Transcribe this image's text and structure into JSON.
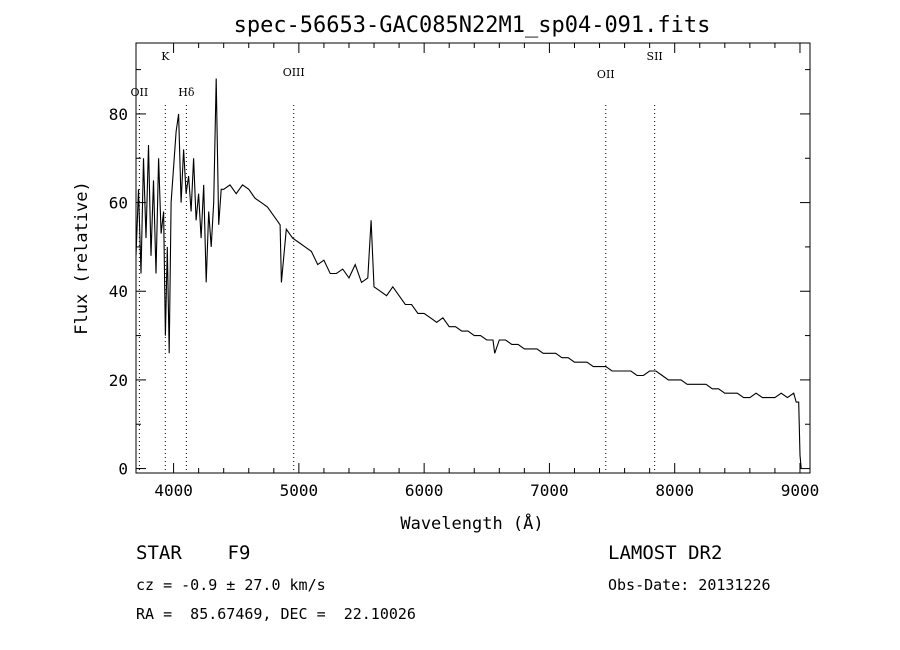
{
  "chart_data": {
    "type": "line",
    "title": "spec-56653-GAC085N22M1_sp04-091.fits",
    "xlabel": "Wavelength (Å)",
    "ylabel": "Flux (relative)",
    "xlim": [
      3700,
      9080
    ],
    "ylim": [
      -1,
      96
    ],
    "xticks": [
      4000,
      5000,
      6000,
      7000,
      8000,
      9000
    ],
    "yticks": [
      0,
      20,
      40,
      60,
      80
    ],
    "grid": false,
    "series": [
      {
        "values_x": [
          3700,
          3720,
          3740,
          3760,
          3780,
          3800,
          3820,
          3840,
          3860,
          3880,
          3900,
          3920,
          3935,
          3950,
          3965,
          3980,
          4000,
          4020,
          4040,
          4060,
          4080,
          4100,
          4120,
          4140,
          4160,
          4180,
          4200,
          4220,
          4240,
          4260,
          4280,
          4300,
          4320,
          4340,
          4360,
          4380,
          4400,
          4450,
          4500,
          4550,
          4600,
          4650,
          4700,
          4750,
          4800,
          4850,
          4861,
          4900,
          4950,
          5000,
          5050,
          5100,
          5150,
          5200,
          5250,
          5300,
          5350,
          5400,
          5450,
          5500,
          5550,
          5577,
          5600,
          5650,
          5700,
          5750,
          5800,
          5850,
          5900,
          5950,
          6000,
          6050,
          6100,
          6150,
          6200,
          6250,
          6300,
          6350,
          6400,
          6450,
          6500,
          6550,
          6563,
          6600,
          6650,
          6700,
          6750,
          6800,
          6850,
          6900,
          6950,
          7000,
          7050,
          7100,
          7150,
          7200,
          7250,
          7300,
          7350,
          7400,
          7450,
          7500,
          7550,
          7600,
          7650,
          7700,
          7750,
          7800,
          7850,
          7900,
          7950,
          8000,
          8050,
          8100,
          8150,
          8200,
          8250,
          8300,
          8350,
          8400,
          8450,
          8500,
          8550,
          8600,
          8650,
          8700,
          8750,
          8800,
          8850,
          8900,
          8950,
          8970,
          8990,
          9000,
          9010
        ],
        "values_y": [
          48,
          63,
          44,
          70,
          52,
          73,
          48,
          65,
          44,
          70,
          53,
          58,
          30,
          50,
          26,
          60,
          68,
          76,
          80,
          60,
          72,
          62,
          66,
          58,
          70,
          56,
          62,
          52,
          64,
          42,
          58,
          50,
          60,
          88,
          55,
          63,
          63,
          64,
          62,
          64,
          63,
          61,
          60,
          59,
          57,
          55,
          42,
          54,
          52,
          51,
          50,
          49,
          46,
          47,
          44,
          44,
          45,
          43,
          46,
          42,
          43,
          56,
          41,
          40,
          39,
          41,
          39,
          37,
          37,
          35,
          35,
          34,
          33,
          34,
          32,
          32,
          31,
          31,
          30,
          30,
          29,
          29,
          26,
          29,
          29,
          28,
          28,
          27,
          27,
          27,
          26,
          26,
          26,
          25,
          25,
          24,
          24,
          24,
          23,
          23,
          23,
          22,
          22,
          22,
          22,
          21,
          21,
          22,
          22,
          21,
          20,
          20,
          20,
          19,
          19,
          19,
          19,
          18,
          18,
          17,
          17,
          17,
          16,
          16,
          17,
          16,
          16,
          16,
          17,
          16,
          17,
          15,
          15,
          3,
          0
        ]
      }
    ],
    "annotations": [
      {
        "label": "K",
        "x": 3934
      },
      {
        "label": "OII",
        "x": 3727
      },
      {
        "label": "Hδ",
        "x": 4102
      },
      {
        "label": "OIII",
        "x": 4959
      },
      {
        "label": "OII",
        "x": 7450
      },
      {
        "label": "SII",
        "x": 7840
      }
    ]
  },
  "info": {
    "class_line": "STAR    F9",
    "survey": "LAMOST DR2",
    "cz_line": "cz = -0.9 ± 27.0 km/s",
    "obs_date": "Obs-Date: 20131226",
    "coords_line": "RA =  85.67469, DEC =  22.10026"
  }
}
